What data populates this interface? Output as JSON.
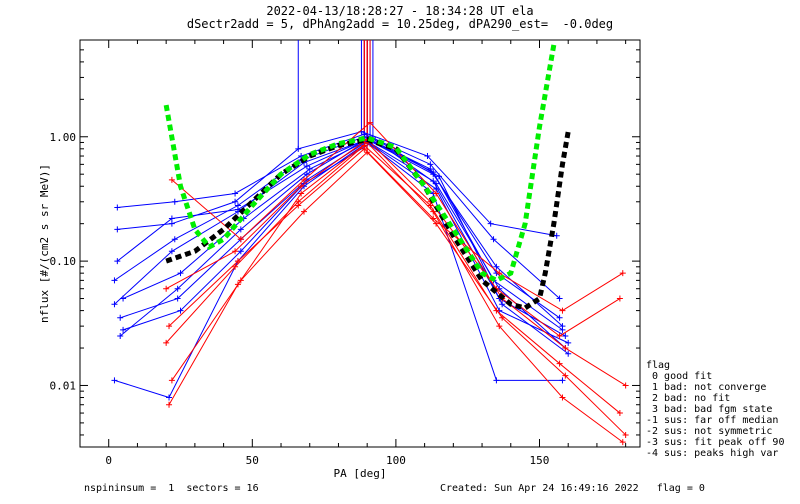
{
  "header": {
    "title_line1": "2022-04-13/18:28:27 - 18:34:28 UT ela",
    "title_line2": "dSectr2add = 5, dPhAng2add = 10.25deg, dPA290_est=  -0.0deg"
  },
  "legend": {
    "title": "flag",
    "items": [
      " 0 good fit",
      " 1 bad: not converge",
      " 2 bad: no fit",
      " 3 bad: bad fgm state",
      "-1 sus: far off median",
      "-2 sus: not symmetric",
      "-3 sus: fit peak off 90",
      "-4 sus: peaks high var"
    ]
  },
  "footer": {
    "left": "nspininsum =  1  sectors = 16",
    "right": "Created: Sun Apr 24 16:49:16 2022   flag = 0"
  },
  "colors": {
    "blue": "#0000ff",
    "red": "#ff0000",
    "green": "#00ee00",
    "black": "#000000"
  },
  "chart_data": {
    "type": "line",
    "xlabel": "PA [deg]",
    "ylabel": "nflux [#/(cm2 s sr MeV)]",
    "xlim": [
      -10,
      185
    ],
    "ylim": [
      0.0032,
      6.0
    ],
    "yscale": "log",
    "xticks": [
      0,
      50,
      100,
      150
    ],
    "xtick_labels": [
      "0",
      "50",
      "100",
      "150"
    ],
    "yticks": [
      0.01,
      0.1,
      1.0
    ],
    "ytick_labels": [
      "0.01",
      "0.10",
      "1.00"
    ],
    "series": [
      {
        "color": "blue",
        "x": [
          2,
          22,
          45,
          68,
          90,
          113,
          135,
          158
        ],
        "y": [
          0.045,
          0.12,
          0.25,
          0.62,
          0.95,
          0.5,
          0.09,
          0.03
        ]
      },
      {
        "color": "blue",
        "x": [
          4,
          24,
          46,
          69,
          91,
          114,
          136,
          159
        ],
        "y": [
          0.025,
          0.06,
          0.18,
          0.5,
          1.0,
          0.42,
          0.06,
          0.02
        ]
      },
      {
        "color": "blue",
        "x": [
          3,
          23,
          44,
          67,
          89,
          112,
          134,
          157
        ],
        "y": [
          0.27,
          0.3,
          0.35,
          0.7,
          1.05,
          0.6,
          0.15,
          0.05
        ]
      },
      {
        "color": "blue",
        "x": [
          2,
          21,
          45,
          68,
          90,
          113,
          135,
          158
        ],
        "y": [
          0.011,
          0.008,
          0.1,
          0.4,
          0.9,
          0.35,
          0.011,
          0.011
        ]
      },
      {
        "color": "blue",
        "x": [
          5,
          25,
          47,
          70,
          92,
          115,
          137,
          160
        ],
        "y": [
          0.05,
          0.08,
          0.22,
          0.55,
          0.98,
          0.48,
          0.045,
          0.018
        ]
      },
      {
        "color": "blue",
        "x": [
          3,
          22,
          44,
          66,
          88,
          111,
          133,
          156
        ],
        "y": [
          0.18,
          0.2,
          0.3,
          0.8,
          1.1,
          0.7,
          0.2,
          0.16
        ]
      },
      {
        "color": "blue",
        "x": [
          4,
          24,
          46,
          69,
          90,
          113,
          136,
          159
        ],
        "y": [
          0.035,
          0.05,
          0.15,
          0.45,
          0.92,
          0.44,
          0.05,
          0.025
        ]
      },
      {
        "color": "blue",
        "x": [
          2,
          23,
          45,
          67,
          89,
          112,
          135,
          157
        ],
        "y": [
          0.07,
          0.15,
          0.28,
          0.65,
          1.0,
          0.55,
          0.08,
          0.035
        ]
      },
      {
        "color": "blue",
        "x": [
          5,
          25,
          46,
          68,
          91,
          114,
          136,
          160
        ],
        "y": [
          0.028,
          0.04,
          0.12,
          0.42,
          0.88,
          0.38,
          0.04,
          0.022
        ]
      },
      {
        "color": "blue",
        "x": [
          3,
          22,
          45,
          69,
          90,
          113,
          134,
          158
        ],
        "y": [
          0.1,
          0.22,
          0.26,
          0.58,
          0.96,
          0.52,
          0.07,
          0.028
        ]
      },
      {
        "color": "red",
        "x": [
          20,
          44,
          66,
          89,
          112,
          135,
          157,
          178
        ],
        "y": [
          0.022,
          0.09,
          0.3,
          0.85,
          0.28,
          0.04,
          0.015,
          0.006
        ]
      },
      {
        "color": "red",
        "x": [
          21,
          45,
          67,
          90,
          113,
          136,
          158,
          179
        ],
        "y": [
          0.007,
          0.065,
          0.35,
          0.9,
          0.25,
          0.03,
          0.008,
          0.0035
        ]
      },
      {
        "color": "red",
        "x": [
          22,
          46,
          68,
          91,
          114,
          137,
          159,
          180
        ],
        "y": [
          0.45,
          0.15,
          0.45,
          1.3,
          0.35,
          0.05,
          0.02,
          0.01
        ]
      },
      {
        "color": "red",
        "x": [
          20,
          44,
          67,
          90,
          112,
          135,
          157,
          178
        ],
        "y": [
          0.06,
          0.12,
          0.4,
          0.95,
          0.3,
          0.06,
          0.025,
          0.05
        ]
      },
      {
        "color": "red",
        "x": [
          21,
          45,
          66,
          89,
          113,
          136,
          158,
          179
        ],
        "y": [
          0.03,
          0.1,
          0.28,
          0.8,
          0.22,
          0.08,
          0.04,
          0.08
        ]
      },
      {
        "color": "red",
        "x": [
          22,
          46,
          68,
          90,
          114,
          137,
          159,
          180
        ],
        "y": [
          0.011,
          0.07,
          0.25,
          0.75,
          0.2,
          0.035,
          0.012,
          0.004
        ]
      }
    ],
    "fits": [
      {
        "color": "black",
        "x": [
          20,
          30,
          40,
          50,
          60,
          70,
          80,
          90,
          100,
          110,
          120,
          130,
          140,
          145,
          150,
          152,
          155,
          158,
          160
        ],
        "y": [
          0.1,
          0.12,
          0.18,
          0.3,
          0.5,
          0.7,
          0.85,
          0.95,
          0.8,
          0.4,
          0.16,
          0.07,
          0.045,
          0.042,
          0.05,
          0.08,
          0.2,
          0.6,
          1.1
        ]
      },
      {
        "color": "green",
        "x": [
          20,
          25,
          30,
          35,
          40,
          50,
          60,
          70,
          80,
          90,
          100,
          110,
          120,
          130,
          135,
          140,
          145,
          150,
          155
        ],
        "y": [
          1.8,
          0.4,
          0.18,
          0.13,
          0.15,
          0.28,
          0.5,
          0.72,
          0.88,
          0.98,
          0.82,
          0.4,
          0.18,
          0.08,
          0.07,
          0.08,
          0.2,
          1.2,
          5.5
        ]
      }
    ]
  }
}
